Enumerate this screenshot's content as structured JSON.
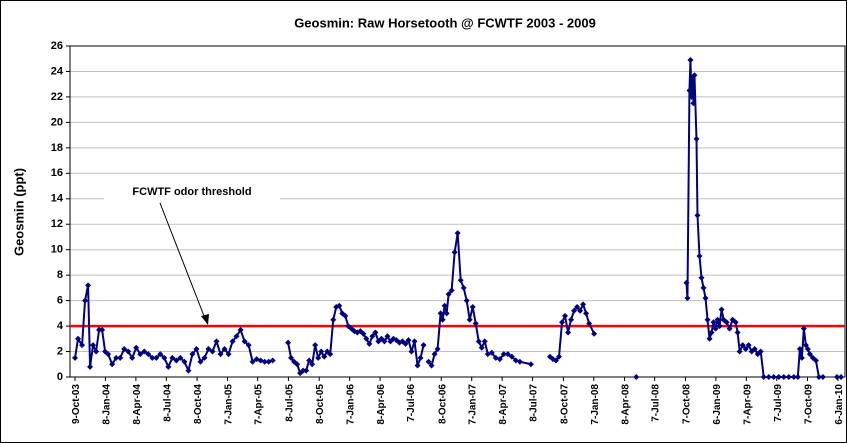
{
  "chart_data": {
    "type": "line",
    "title": "Geosmin:  Raw Horsetooth @ FCWTF  2003 - 2009",
    "y_label": "Geosmin (ppt)",
    "color": "#000080",
    "grid": true,
    "ylim": [
      0,
      26
    ],
    "yticks": [
      0,
      2,
      4,
      6,
      8,
      10,
      12,
      14,
      16,
      18,
      20,
      22,
      24,
      26
    ],
    "xlim": [
      "2003-09-24",
      "2010-01-27"
    ],
    "xticks": [
      {
        "value": "2003-10-09",
        "label": "9-Oct-03"
      },
      {
        "value": "2004-01-08",
        "label": "8-Jan-04"
      },
      {
        "value": "2004-04-08",
        "label": "8-Apr-04"
      },
      {
        "value": "2004-07-08",
        "label": "8-Jul-04"
      },
      {
        "value": "2004-10-08",
        "label": "8-Oct-04"
      },
      {
        "value": "2005-01-07",
        "label": "7-Jan-05"
      },
      {
        "value": "2005-04-07",
        "label": "7-Apr-05"
      },
      {
        "value": "2005-07-08",
        "label": "8-Jul-05"
      },
      {
        "value": "2005-10-08",
        "label": "8-Oct-05"
      },
      {
        "value": "2006-01-07",
        "label": "7-Jan-06"
      },
      {
        "value": "2006-04-08",
        "label": "8-Apr-06"
      },
      {
        "value": "2006-07-07",
        "label": "7-Jul-06"
      },
      {
        "value": "2006-10-08",
        "label": "8-Oct-06"
      },
      {
        "value": "2007-01-07",
        "label": "7-Jan-07"
      },
      {
        "value": "2007-04-08",
        "label": "8-Apr-07"
      },
      {
        "value": "2007-07-08",
        "label": "8-Jul-07"
      },
      {
        "value": "2007-10-08",
        "label": "8-Oct-07"
      },
      {
        "value": "2008-01-07",
        "label": "7-Jan-08"
      },
      {
        "value": "2008-04-08",
        "label": "8-Apr-08"
      },
      {
        "value": "2008-07-07",
        "label": "7-Jul-08"
      },
      {
        "value": "2008-10-07",
        "label": "7-Oct-08"
      },
      {
        "value": "2009-01-06",
        "label": "6-Jan-09"
      },
      {
        "value": "2009-04-07",
        "label": "7-Apr-09"
      },
      {
        "value": "2009-07-07",
        "label": "7-Jul-09"
      },
      {
        "value": "2009-10-07",
        "label": "7-Oct-09"
      },
      {
        "value": "2010-01-06",
        "label": "6-Jan-10"
      }
    ],
    "threshold": {
      "value": 4,
      "color": "#ff0000"
    },
    "annotation": "FCWTF odor threshold",
    "x": [
      "2003-10-09",
      "2003-10-18",
      "2003-10-30",
      "2003-11-08",
      "2003-11-17",
      "2003-11-23",
      "2003-12-02",
      "2003-12-11",
      "2003-12-20",
      "2003-12-29",
      "2004-01-07",
      "2004-01-16",
      "2004-01-28",
      "2004-02-09",
      "2004-02-21",
      "2004-03-04",
      "2004-03-16",
      "2004-03-28",
      "2004-04-09",
      "2004-04-21",
      "2004-05-03",
      "2004-05-15",
      "2004-05-27",
      "2004-06-08",
      "2004-06-20",
      "2004-07-02",
      "2004-07-14",
      "2004-07-26",
      "2004-08-07",
      "2004-08-19",
      "2004-08-31",
      "2004-09-12",
      "2004-09-24",
      "2004-10-06",
      "2004-10-18",
      "2004-10-30",
      "2004-11-11",
      "2004-11-23",
      "2004-12-05",
      "2004-12-17",
      "2004-12-29",
      "2005-01-10",
      "2005-01-22",
      "2005-02-03",
      "2005-02-15",
      "2005-02-27",
      "2005-03-11",
      "2005-03-23",
      "2005-04-04",
      "2005-04-16",
      "2005-04-28",
      "2005-05-10",
      "2005-05-22",
      null,
      "2005-07-07",
      "2005-07-16",
      "2005-07-25",
      "2005-08-03",
      "2005-08-12",
      "2005-08-21",
      "2005-08-30",
      "2005-09-08",
      "2005-09-17",
      "2005-09-26",
      "2005-10-05",
      "2005-10-14",
      "2005-10-23",
      "2005-11-01",
      "2005-11-10",
      "2005-11-19",
      "2005-11-28",
      "2005-12-07",
      "2005-12-16",
      "2005-12-25",
      "2006-01-03",
      "2006-01-12",
      "2006-01-21",
      "2006-01-30",
      "2006-02-08",
      "2006-02-17",
      "2006-02-26",
      "2006-03-07",
      "2006-03-16",
      "2006-03-25",
      "2006-04-03",
      "2006-04-12",
      "2006-04-21",
      "2006-04-30",
      "2006-05-09",
      "2006-05-18",
      "2006-05-27",
      "2006-06-05",
      "2006-06-14",
      "2006-06-23",
      "2006-07-02",
      "2006-07-11",
      "2006-07-20",
      "2006-07-29",
      "2006-08-07",
      "2006-08-16",
      null,
      "2006-08-31",
      "2006-09-09",
      "2006-09-18",
      "2006-09-27",
      "2006-10-06",
      "2006-10-12",
      "2006-10-18",
      "2006-10-24",
      "2006-10-30",
      "2006-11-08",
      "2006-11-17",
      "2006-11-26",
      "2006-12-05",
      "2006-12-14",
      "2006-12-23",
      "2007-01-01",
      "2007-01-10",
      "2007-01-19",
      "2007-01-28",
      "2007-02-06",
      "2007-02-15",
      "2007-02-24",
      "2007-03-08",
      "2007-03-20",
      "2007-04-01",
      "2007-04-13",
      "2007-04-25",
      "2007-05-07",
      "2007-05-19",
      "2007-05-31",
      "2007-07-03",
      null,
      "2007-08-29",
      "2007-09-07",
      "2007-09-16",
      "2007-09-25",
      "2007-10-04",
      "2007-10-13",
      "2007-10-22",
      "2007-10-31",
      "2007-11-09",
      "2007-11-18",
      "2007-11-27",
      "2007-12-06",
      "2007-12-15",
      "2007-12-24",
      "2008-01-08",
      null,
      "2008-05-13",
      null,
      "2008-10-10",
      "2008-10-13",
      "2008-10-19",
      "2008-10-22",
      "2008-10-25",
      "2008-10-28",
      "2008-10-31",
      "2008-11-03",
      "2008-11-09",
      "2008-11-12",
      "2008-11-18",
      "2008-11-24",
      "2008-11-30",
      "2008-12-06",
      "2008-12-12",
      "2008-12-18",
      "2008-12-24",
      "2008-12-30",
      "2009-01-05",
      "2009-01-11",
      "2009-01-17",
      "2009-01-23",
      "2009-01-29",
      "2009-02-07",
      "2009-02-16",
      "2009-02-25",
      "2009-03-06",
      "2009-03-12",
      "2009-03-18",
      "2009-03-27",
      "2009-04-05",
      "2009-04-14",
      "2009-04-23",
      "2009-05-02",
      "2009-05-11",
      "2009-05-20",
      "2009-05-29",
      "2009-06-13",
      "2009-06-28",
      "2009-07-13",
      "2009-07-28",
      "2009-08-12",
      "2009-08-27",
      "2009-09-08",
      "2009-09-14",
      "2009-09-20",
      "2009-09-26",
      "2009-10-02",
      "2009-10-08",
      "2009-10-14",
      "2009-10-23",
      "2009-11-01",
      "2009-11-10",
      "2009-11-22",
      null,
      "2010-01-03",
      "2010-01-15"
    ],
    "values": [
      1.5,
      3,
      2.5,
      6,
      7.2,
      0.8,
      2.5,
      2,
      3.7,
      3.7,
      2,
      1.8,
      1,
      1.5,
      1.5,
      2.2,
      2,
      1.5,
      2.3,
      1.8,
      2,
      1.8,
      1.5,
      1.5,
      1.8,
      1.5,
      0.8,
      1.5,
      1.3,
      1.5,
      1.2,
      0.5,
      1.8,
      2.2,
      1.2,
      1.5,
      2.2,
      2.0,
      2.8,
      1.8,
      2.2,
      1.8,
      2.8,
      3.2,
      3.7,
      2.8,
      2.5,
      1.2,
      1.4,
      1.3,
      1.2,
      1.2,
      1.3,
      null,
      2.7,
      1.5,
      1.2,
      1.0,
      0.3,
      0.5,
      0.5,
      1.3,
      1.0,
      2.5,
      1.5,
      2.0,
      1.6,
      2.0,
      1.8,
      4.5,
      5.5,
      5.6,
      5.0,
      4.8,
      4.0,
      3.8,
      3.6,
      3.5,
      3.6,
      3.4,
      3.0,
      2.6,
      3.2,
      3.5,
      2.8,
      3.0,
      2.8,
      3.2,
      2.8,
      3.0,
      2.9,
      2.7,
      2.8,
      2.6,
      2.9,
      2.0,
      2.8,
      0.9,
      1.5,
      2.5,
      null,
      1.2,
      0.9,
      1.8,
      2.2,
      5.0,
      4.5,
      5.6,
      5.0,
      6.5,
      6.8,
      9.8,
      11.3,
      7.6,
      7.0,
      6.0,
      4.5,
      5.5,
      4.2,
      2.8,
      2.3,
      2.8,
      1.8,
      1.9,
      1.5,
      1.4,
      1.8,
      1.8,
      1.6,
      1.3,
      1.2,
      1.0,
      null,
      1.6,
      1.4,
      1.3,
      1.6,
      4.3,
      4.8,
      3.5,
      4.5,
      5.2,
      5.5,
      5.2,
      5.7,
      5.0,
      4.2,
      3.4,
      null,
      0,
      null,
      7.4,
      6.2,
      22.5,
      24.9,
      22,
      23.5,
      21.5,
      23.7,
      18.7,
      12.7,
      9.5,
      7.8,
      7.0,
      6.2,
      4.5,
      3.0,
      3.5,
      4.3,
      3.8,
      4.5,
      4.0,
      5.3,
      4.5,
      4.3,
      3.8,
      4.5,
      4.3,
      3.5,
      2.0,
      2.5,
      2.2,
      2.5,
      2.0,
      2.2,
      1.8,
      2.0,
      0,
      0,
      0,
      0,
      0,
      0,
      0,
      0,
      2.2,
      1.5,
      3.8,
      2.5,
      2.2,
      1.8,
      1.5,
      1.3,
      0,
      0,
      null,
      0,
      0
    ]
  }
}
